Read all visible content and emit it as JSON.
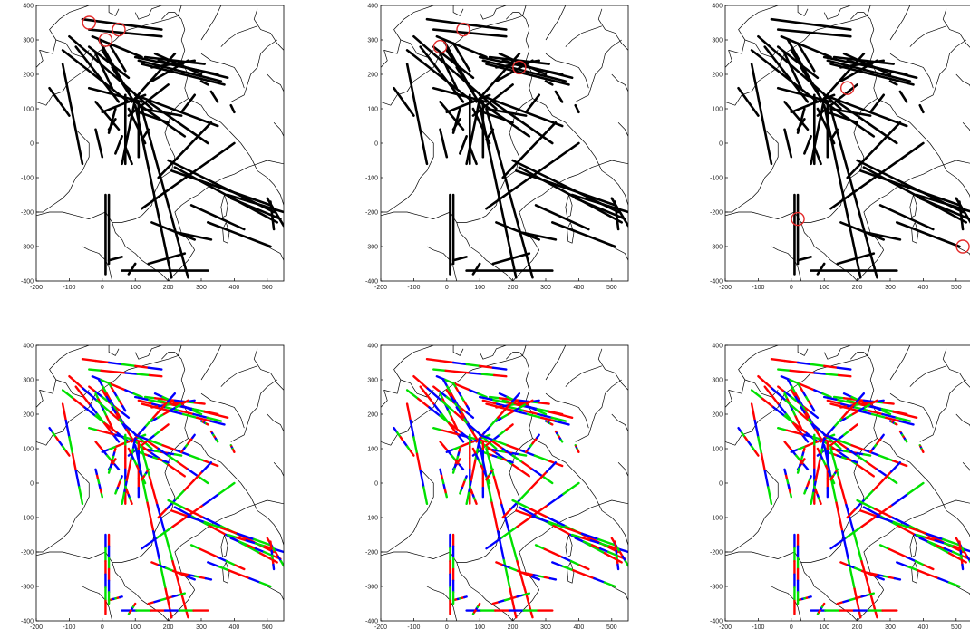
{
  "figure": {
    "colors": {
      "track": "#000000",
      "marker": "#e32a2a",
      "red": "#ff0000",
      "blue": "#0000ff",
      "green": "#00e000",
      "coast": "#000000"
    }
  },
  "chart_data": {
    "type": "line",
    "grid": false,
    "x_ticks": [
      -200,
      -100,
      0,
      100,
      200,
      300,
      400,
      500
    ],
    "y_ticks": [
      400,
      300,
      200,
      100,
      0,
      -100,
      -200,
      -300,
      -400
    ],
    "xlim": [
      -200,
      550
    ],
    "ylim": [
      -400,
      400
    ],
    "tracks": [
      [
        [
          -60,
          360
        ],
        [
          180,
          330
        ]
      ],
      [
        [
          -40,
          330
        ],
        [
          180,
          310
        ]
      ],
      [
        [
          -30,
          310
        ],
        [
          120,
          250
        ]
      ],
      [
        [
          -40,
          280
        ],
        [
          80,
          190
        ]
      ],
      [
        [
          -20,
          260
        ],
        [
          30,
          160
        ]
      ],
      [
        [
          -10,
          300
        ],
        [
          60,
          180
        ]
      ],
      [
        [
          0,
          270
        ],
        [
          80,
          150
        ]
      ],
      [
        [
          20,
          290
        ],
        [
          70,
          210
        ]
      ],
      [
        [
          100,
          250
        ],
        [
          350,
          200
        ]
      ],
      [
        [
          110,
          240
        ],
        [
          360,
          180
        ]
      ],
      [
        [
          120,
          230
        ],
        [
          370,
          170
        ]
      ],
      [
        [
          130,
          250
        ],
        [
          310,
          230
        ]
      ],
      [
        [
          160,
          260
        ],
        [
          300,
          200
        ]
      ],
      [
        [
          150,
          220
        ],
        [
          280,
          240
        ]
      ],
      [
        [
          170,
          240
        ],
        [
          380,
          190
        ]
      ],
      [
        [
          150,
          180
        ],
        [
          260,
          240
        ]
      ],
      [
        [
          -100,
          310
        ],
        [
          150,
          100
        ]
      ],
      [
        [
          -120,
          270
        ],
        [
          80,
          120
        ]
      ],
      [
        [
          -160,
          160
        ],
        [
          -100,
          80
        ]
      ],
      [
        [
          -120,
          230
        ],
        [
          -60,
          -60
        ]
      ],
      [
        [
          -80,
          280
        ],
        [
          50,
          120
        ]
      ],
      [
        [
          -40,
          160
        ],
        [
          120,
          120
        ]
      ],
      [
        [
          0,
          90
        ],
        [
          130,
          140
        ]
      ],
      [
        [
          90,
          120
        ],
        [
          220,
          260
        ]
      ],
      [
        [
          100,
          120
        ],
        [
          250,
          20
        ]
      ],
      [
        [
          80,
          80
        ],
        [
          200,
          170
        ]
      ],
      [
        [
          120,
          100
        ],
        [
          240,
          80
        ]
      ],
      [
        [
          110,
          90
        ],
        [
          200,
          60
        ]
      ],
      [
        [
          100,
          140
        ],
        [
          350,
          50
        ]
      ],
      [
        [
          140,
          120
        ],
        [
          320,
          0
        ]
      ],
      [
        [
          90,
          130
        ],
        [
          30,
          220
        ]
      ],
      [
        [
          70,
          140
        ],
        [
          70,
          -60
        ]
      ],
      [
        [
          100,
          130
        ],
        [
          60,
          -60
        ]
      ],
      [
        [
          110,
          120
        ],
        [
          110,
          -40
        ]
      ],
      [
        [
          120,
          100
        ],
        [
          260,
          -390
        ]
      ],
      [
        [
          100,
          110
        ],
        [
          210,
          -390
        ]
      ],
      [
        [
          80,
          100
        ],
        [
          130,
          0
        ]
      ],
      [
        [
          0,
          -40
        ],
        [
          -20,
          40
        ]
      ],
      [
        [
          20,
          40
        ],
        [
          40,
          70
        ]
      ],
      [
        [
          40,
          100
        ],
        [
          20,
          30
        ]
      ],
      [
        [
          -20,
          120
        ],
        [
          50,
          40
        ]
      ],
      [
        [
          70,
          -10
        ],
        [
          90,
          -60
        ]
      ],
      [
        [
          60,
          20
        ],
        [
          40,
          -30
        ]
      ],
      [
        [
          240,
          90
        ],
        [
          280,
          140
        ]
      ],
      [
        [
          140,
          40
        ],
        [
          120,
          10
        ]
      ],
      [
        [
          10,
          -150
        ],
        [
          10,
          -380
        ]
      ],
      [
        [
          20,
          -150
        ],
        [
          20,
          -350
        ]
      ],
      [
        [
          20,
          -340
        ],
        [
          60,
          -330
        ]
      ],
      [
        [
          60,
          -370
        ],
        [
          320,
          -370
        ]
      ],
      [
        [
          140,
          -350
        ],
        [
          250,
          -320
        ]
      ],
      [
        [
          230,
          -260
        ],
        [
          330,
          -280
        ]
      ],
      [
        [
          80,
          -380
        ],
        [
          100,
          -350
        ]
      ],
      [
        [
          120,
          -190
        ],
        [
          400,
          0
        ]
      ],
      [
        [
          170,
          -100
        ],
        [
          330,
          60
        ]
      ],
      [
        [
          200,
          -50
        ],
        [
          520,
          -200
        ]
      ],
      [
        [
          220,
          -70
        ],
        [
          530,
          -230
        ]
      ],
      [
        [
          210,
          -80
        ],
        [
          510,
          -180
        ]
      ],
      [
        [
          380,
          -150
        ],
        [
          550,
          -200
        ]
      ],
      [
        [
          390,
          -160
        ],
        [
          540,
          -220
        ]
      ],
      [
        [
          500,
          -160
        ],
        [
          550,
          -240
        ]
      ],
      [
        [
          510,
          -170
        ],
        [
          520,
          -250
        ]
      ],
      [
        [
          270,
          -180
        ],
        [
          430,
          -250
        ]
      ],
      [
        [
          320,
          -230
        ],
        [
          510,
          -300
        ]
      ],
      [
        [
          150,
          -230
        ],
        [
          280,
          -280
        ]
      ],
      [
        [
          390,
          110
        ],
        [
          400,
          90
        ]
      ],
      [
        [
          300,
          180
        ],
        [
          320,
          170
        ]
      ],
      [
        [
          330,
          150
        ],
        [
          350,
          120
        ]
      ]
    ],
    "panel_markers": [
      [
        [
          -40,
          350
        ],
        [
          10,
          300
        ],
        [
          50,
          330
        ]
      ],
      [
        [
          -20,
          280
        ],
        [
          50,
          330
        ],
        [
          220,
          220
        ]
      ],
      [
        [
          170,
          160
        ],
        [
          20,
          -220
        ],
        [
          520,
          -300
        ]
      ]
    ]
  }
}
